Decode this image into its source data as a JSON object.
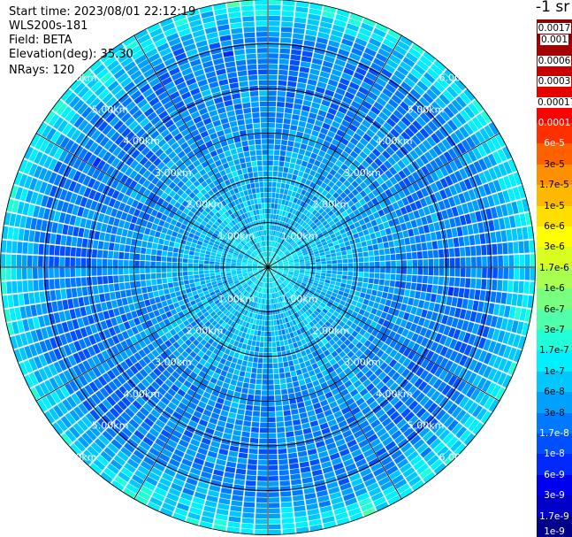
{
  "header": {
    "start_time": "Start time: 2023/08/01 22:12:19",
    "instrument": "WLS200s-181",
    "field": "Field: BETA",
    "elevation": "Elevation(deg): 35.30",
    "nrays": "NRays: 120"
  },
  "chart_data": {
    "type": "heatmap",
    "projection": "polar-ppi",
    "field": "BETA",
    "n_rays": 120,
    "elevation_deg": 35.3,
    "range_unit": "km",
    "range_rings_km": [
      1,
      2,
      3,
      4,
      5,
      6
    ],
    "range_ring_labels": [
      "1.00km",
      "2.00km",
      "3.00km",
      "4.00km",
      "5.00km",
      "6.00km"
    ],
    "azimuth_lines_deg": [
      0,
      30,
      60,
      90,
      120,
      150,
      180,
      210,
      240,
      270,
      300,
      330
    ],
    "colorbar": {
      "title": "-1 sr",
      "unit": "sr-1",
      "scale": "log",
      "ticks": [
        "0.0017",
        "0.001",
        "0.0006",
        "0.0003",
        "0.00017",
        "0.0001",
        "6e-5",
        "3e-5",
        "1.7e-5",
        "1e-5",
        "6e-6",
        "3e-6",
        "1.7e-6",
        "1e-6",
        "6e-7",
        "3e-7",
        "1.7e-7",
        "1e-7",
        "6e-8",
        "3e-8",
        "1.7e-8",
        "1e-8",
        "6e-9",
        "3e-9",
        "1.7e-9",
        "1e-9"
      ],
      "colors": [
        "#8b0000",
        "#a60000",
        "#c80000",
        "#e50000",
        "#ff0000",
        "#ff3000",
        "#ff6000",
        "#ff9000",
        "#ffb800",
        "#ffde00",
        "#ffff00",
        "#d8ff20",
        "#a8ff50",
        "#78ff80",
        "#50ffaa",
        "#20ffd8",
        "#00f0ff",
        "#00c8ff",
        "#00a0ff",
        "#0078ff",
        "#0050ff",
        "#0028ff",
        "#0000ee",
        "#0000c8",
        "#00008b"
      ]
    },
    "log10_beta_profile_by_range_km": {
      "range_km": [
        0.0,
        0.5,
        1.0,
        2.0,
        3.0,
        4.0,
        5.0,
        5.5,
        6.0
      ],
      "log10_beta": [
        -6.8,
        -7.0,
        -7.2,
        -7.3,
        -7.5,
        -7.6,
        -7.6,
        -7.2,
        -6.8
      ]
    }
  }
}
